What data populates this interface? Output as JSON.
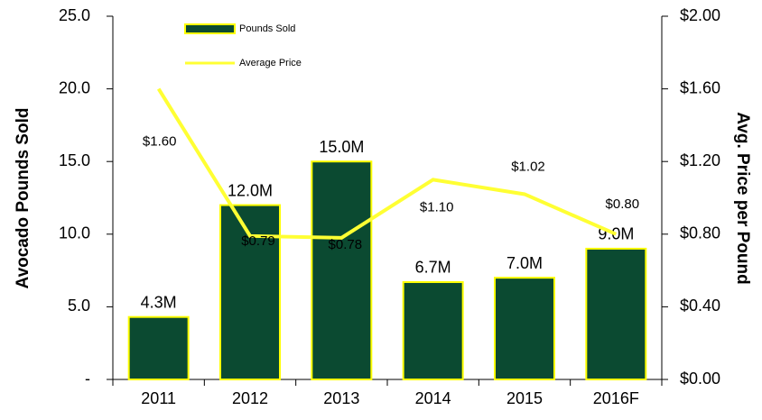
{
  "chart_data": {
    "type": "bar_line",
    "categories": [
      "2011",
      "2012",
      "2013",
      "2014",
      "2015",
      "2016F"
    ],
    "series": [
      {
        "name": "Pounds Sold",
        "type": "bar",
        "color": "#0b4a31",
        "edge_color": "#ffff00",
        "values": [
          4.3,
          12.0,
          15.0,
          6.7,
          7.0,
          9.0
        ],
        "value_labels": [
          "4.3M",
          "12.0M",
          "15.0M",
          "6.7M",
          "7.0M",
          "9.0M"
        ]
      },
      {
        "name": "Average Price",
        "type": "line",
        "axis": "y2",
        "color": "#ffff33",
        "values": [
          1.6,
          0.79,
          0.78,
          1.1,
          1.02,
          0.8
        ],
        "value_labels": [
          "$1.60",
          "$0.79",
          "$0.78",
          "$1.10",
          "$1.02",
          "$0.80"
        ]
      }
    ],
    "ylabel": "Avocado Pounds Sold",
    "y2label": "Avg. Price per Pound",
    "ylim": [
      0,
      25
    ],
    "yticks": [
      {
        "value": 0,
        "label": "-"
      },
      {
        "value": 5,
        "label": "5.0"
      },
      {
        "value": 10,
        "label": "10.0"
      },
      {
        "value": 15,
        "label": "15.0"
      },
      {
        "value": 20,
        "label": "20.0"
      },
      {
        "value": 25,
        "label": "25.0"
      }
    ],
    "y2lim": [
      0,
      2
    ],
    "y2ticks": [
      {
        "value": 0,
        "label": "$0.00"
      },
      {
        "value": 0.4,
        "label": "$0.40"
      },
      {
        "value": 0.8,
        "label": "$0.80"
      },
      {
        "value": 1.2,
        "label": "$1.20"
      },
      {
        "value": 1.6,
        "label": "$1.60"
      },
      {
        "value": 2,
        "label": "$2.00"
      }
    ],
    "legend": "top-left"
  }
}
